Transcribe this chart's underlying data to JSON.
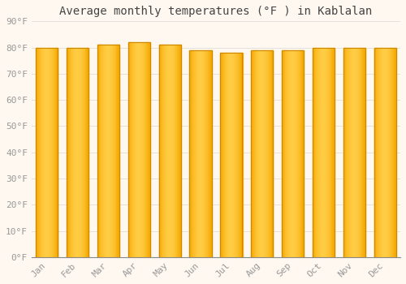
{
  "title": "Average monthly temperatures (°F ) in Kablalan",
  "months": [
    "Jan",
    "Feb",
    "Mar",
    "Apr",
    "May",
    "Jun",
    "Jul",
    "Aug",
    "Sep",
    "Oct",
    "Nov",
    "Dec"
  ],
  "values": [
    80,
    80,
    81,
    82,
    81,
    79,
    78,
    79,
    79,
    80,
    80,
    80
  ],
  "bar_color_center": "#FFCC44",
  "bar_color_edge": "#F5A800",
  "bar_outline_color": "#CC8800",
  "background_color": "#FFF8F0",
  "grid_color": "#DDDDDD",
  "ylim": [
    0,
    90
  ],
  "yticks": [
    0,
    10,
    20,
    30,
    40,
    50,
    60,
    70,
    80,
    90
  ],
  "ytick_labels": [
    "0°F",
    "10°F",
    "20°F",
    "30°F",
    "40°F",
    "50°F",
    "60°F",
    "70°F",
    "80°F",
    "90°F"
  ],
  "title_fontsize": 10,
  "tick_fontsize": 8,
  "font_family": "monospace",
  "tick_color": "#999999",
  "title_color": "#444444"
}
